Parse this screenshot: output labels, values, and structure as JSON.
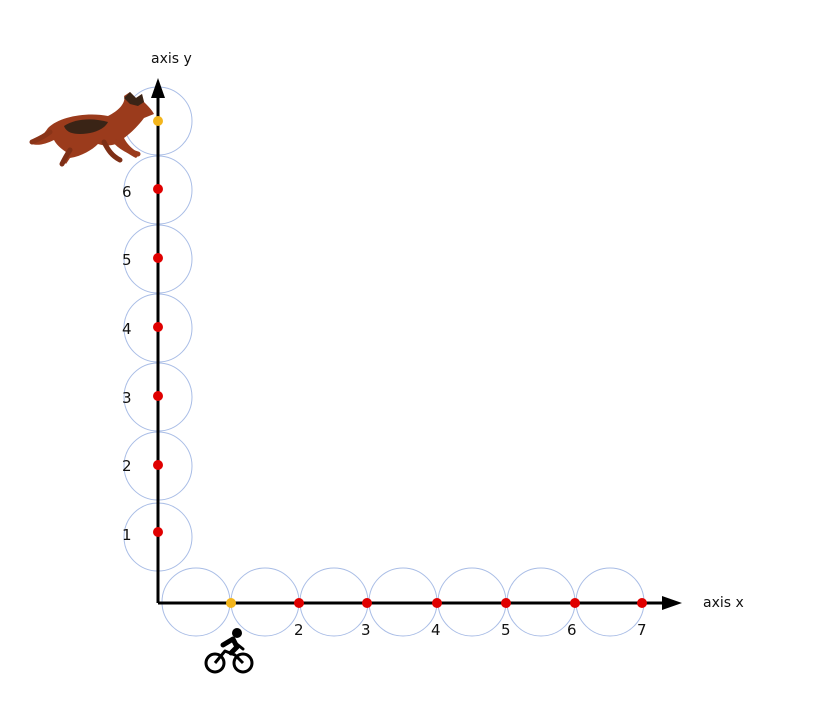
{
  "axes": {
    "x_label": "axis x",
    "y_label": "axis y"
  },
  "x_ticks": [
    "2",
    "3",
    "4",
    "5",
    "6",
    "7"
  ],
  "y_ticks": [
    "1",
    "2",
    "3",
    "4",
    "5",
    "6"
  ],
  "figures": {
    "dog": "dog-image",
    "cyclist": "cyclist-icon"
  },
  "colors": {
    "axis": "#000000",
    "circle": "#a9bde6",
    "point": "#e00000",
    "start_point": "#f3b51c",
    "dog_body": "#9b3b1c",
    "dog_dark": "#3a2416"
  }
}
